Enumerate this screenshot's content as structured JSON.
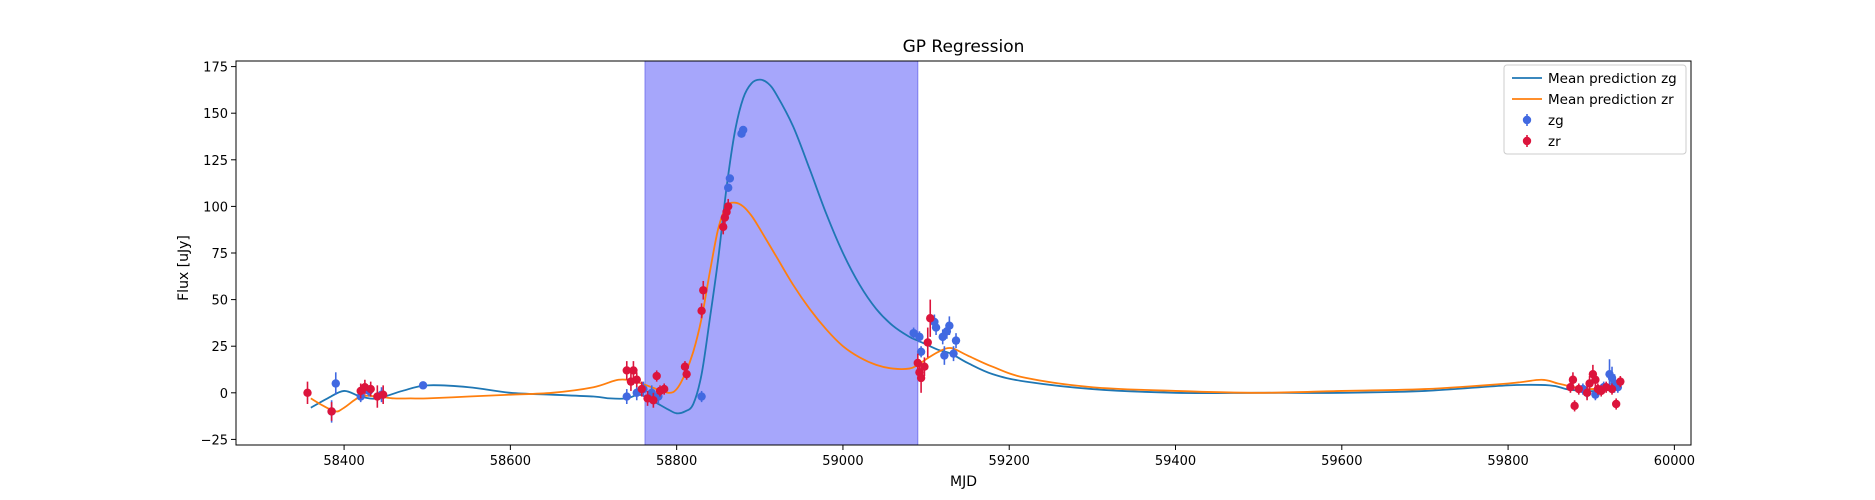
{
  "chart_data": {
    "type": "line",
    "title": "GP Regression",
    "xlabel": "MJD",
    "ylabel": "Flux [uJy]",
    "xlim": [
      58270,
      60020
    ],
    "ylim": [
      -28,
      178
    ],
    "xticks": [
      58400,
      58600,
      58800,
      59000,
      59200,
      59400,
      59600,
      59800,
      60000
    ],
    "yticks": [
      -25,
      0,
      25,
      50,
      75,
      100,
      125,
      150,
      175
    ],
    "grid": false,
    "legend_position": "top-right",
    "shaded_region": {
      "x_start": 58762,
      "x_end": 59090,
      "color": "#a6a6fb"
    },
    "series": [
      {
        "name": "Mean prediction zg",
        "kind": "line",
        "color": "#1f77b4",
        "x": [
          58360,
          58380,
          58400,
          58420,
          58440,
          58470,
          58500,
          58550,
          58600,
          58650,
          58700,
          58720,
          58740,
          58755,
          58770,
          58790,
          58800,
          58810,
          58820,
          58830,
          58840,
          58850,
          58860,
          58870,
          58880,
          58890,
          58900,
          58910,
          58920,
          58940,
          58960,
          58980,
          59000,
          59020,
          59040,
          59060,
          59080,
          59090,
          59100,
          59115,
          59130,
          59150,
          59180,
          59220,
          59300,
          59400,
          59500,
          59600,
          59700,
          59800,
          59850,
          59870,
          59890,
          59910,
          59930
        ],
        "y": [
          -8,
          -3,
          1,
          -2,
          -3,
          1,
          4,
          3,
          0,
          -1,
          -2,
          -3,
          -3,
          -1,
          -4,
          -9,
          -11,
          -10,
          -6,
          10,
          40,
          72,
          110,
          140,
          158,
          166,
          168,
          166,
          160,
          143,
          120,
          96,
          75,
          58,
          45,
          36,
          30,
          28,
          26,
          23,
          21,
          16,
          10,
          6,
          2,
          0,
          0,
          0,
          1,
          4,
          4,
          2,
          1,
          1,
          2
        ]
      },
      {
        "name": "Mean prediction zr",
        "kind": "line",
        "color": "#ff7f0e",
        "x": [
          58360,
          58375,
          58390,
          58400,
          58420,
          58440,
          58460,
          58480,
          58500,
          58550,
          58600,
          58650,
          58700,
          58730,
          58750,
          58770,
          58790,
          58800,
          58810,
          58820,
          58830,
          58840,
          58850,
          58860,
          58870,
          58880,
          58890,
          58900,
          58920,
          58940,
          58960,
          58980,
          59000,
          59020,
          59040,
          59060,
          59080,
          59090,
          59100,
          59115,
          59130,
          59150,
          59180,
          59220,
          59300,
          59400,
          59500,
          59600,
          59700,
          59800,
          59840,
          59860,
          59880,
          59900,
          59920,
          59935
        ],
        "y": [
          -3,
          -7,
          -10,
          -8,
          -2,
          -2,
          -3,
          -3,
          -3,
          -2,
          -1,
          0,
          3,
          7,
          6,
          3,
          0,
          2,
          10,
          22,
          40,
          65,
          88,
          100,
          102,
          100,
          95,
          88,
          73,
          58,
          45,
          34,
          25,
          19,
          15,
          13,
          13,
          15,
          18,
          22,
          24,
          20,
          14,
          8,
          3,
          1,
          0,
          1,
          2,
          5,
          7,
          5,
          3,
          2,
          3,
          4
        ]
      },
      {
        "name": "zg",
        "kind": "errorbar",
        "color": "#4169e1",
        "points": [
          {
            "x": 58385,
            "y": -10,
            "err": 6
          },
          {
            "x": 58390,
            "y": 5,
            "err": 6
          },
          {
            "x": 58420,
            "y": -2,
            "err": 3
          },
          {
            "x": 58430,
            "y": 1,
            "err": 3
          },
          {
            "x": 58445,
            "y": -1,
            "err": 4
          },
          {
            "x": 58495,
            "y": 4,
            "err": 1.5
          },
          {
            "x": 58740,
            "y": -2,
            "err": 4
          },
          {
            "x": 58752,
            "y": 0,
            "err": 4
          },
          {
            "x": 58760,
            "y": 2,
            "err": 4
          },
          {
            "x": 58770,
            "y": 0,
            "err": 4
          },
          {
            "x": 58778,
            "y": -2,
            "err": 4
          },
          {
            "x": 58830,
            "y": -2,
            "err": 3
          },
          {
            "x": 58862,
            "y": 110,
            "err": 2
          },
          {
            "x": 58864,
            "y": 115,
            "err": 2
          },
          {
            "x": 58878,
            "y": 139,
            "err": 2
          },
          {
            "x": 58880,
            "y": 141,
            "err": 2
          },
          {
            "x": 59085,
            "y": 32,
            "err": 3
          },
          {
            "x": 59092,
            "y": 30,
            "err": 3
          },
          {
            "x": 59094,
            "y": 22,
            "err": 3
          },
          {
            "x": 59110,
            "y": 38,
            "err": 4
          },
          {
            "x": 59112,
            "y": 35,
            "err": 4
          },
          {
            "x": 59120,
            "y": 30,
            "err": 4
          },
          {
            "x": 59122,
            "y": 20,
            "err": 5
          },
          {
            "x": 59125,
            "y": 33,
            "err": 4
          },
          {
            "x": 59128,
            "y": 36,
            "err": 5
          },
          {
            "x": 59133,
            "y": 21,
            "err": 4
          },
          {
            "x": 59136,
            "y": 28,
            "err": 4
          },
          {
            "x": 59890,
            "y": 2,
            "err": 3
          },
          {
            "x": 59895,
            "y": 0,
            "err": 3
          },
          {
            "x": 59905,
            "y": -1,
            "err": 3
          },
          {
            "x": 59915,
            "y": 3,
            "err": 3
          },
          {
            "x": 59922,
            "y": 10,
            "err": 8
          },
          {
            "x": 59925,
            "y": 8,
            "err": 6
          },
          {
            "x": 59928,
            "y": 5,
            "err": 5
          },
          {
            "x": 59932,
            "y": 3,
            "err": 3
          }
        ]
      },
      {
        "name": "zr",
        "kind": "errorbar",
        "color": "#dc143c",
        "points": [
          {
            "x": 58356,
            "y": 0,
            "err": 6
          },
          {
            "x": 58385,
            "y": -10,
            "err": 5
          },
          {
            "x": 58420,
            "y": 1,
            "err": 4
          },
          {
            "x": 58425,
            "y": 3,
            "err": 4
          },
          {
            "x": 58432,
            "y": 2,
            "err": 4
          },
          {
            "x": 58440,
            "y": -2,
            "err": 6
          },
          {
            "x": 58447,
            "y": -1,
            "err": 5
          },
          {
            "x": 58740,
            "y": 12,
            "err": 5
          },
          {
            "x": 58745,
            "y": 6,
            "err": 5
          },
          {
            "x": 58748,
            "y": 12,
            "err": 5
          },
          {
            "x": 58752,
            "y": 7,
            "err": 4
          },
          {
            "x": 58758,
            "y": 2,
            "err": 4
          },
          {
            "x": 58765,
            "y": -3,
            "err": 4
          },
          {
            "x": 58772,
            "y": -4,
            "err": 4
          },
          {
            "x": 58776,
            "y": 9,
            "err": 3
          },
          {
            "x": 58780,
            "y": 1,
            "err": 3
          },
          {
            "x": 58785,
            "y": 2,
            "err": 3
          },
          {
            "x": 58810,
            "y": 14,
            "err": 3
          },
          {
            "x": 58812,
            "y": 10,
            "err": 3
          },
          {
            "x": 58830,
            "y": 44,
            "err": 4
          },
          {
            "x": 58832,
            "y": 55,
            "err": 5
          },
          {
            "x": 58856,
            "y": 89,
            "err": 4
          },
          {
            "x": 58858,
            "y": 94,
            "err": 4
          },
          {
            "x": 58860,
            "y": 97,
            "err": 4
          },
          {
            "x": 58862,
            "y": 100,
            "err": 4
          },
          {
            "x": 59090,
            "y": 16,
            "err": 5
          },
          {
            "x": 59092,
            "y": 11,
            "err": 5
          },
          {
            "x": 59094,
            "y": 8,
            "err": 8
          },
          {
            "x": 59098,
            "y": 14,
            "err": 5
          },
          {
            "x": 59102,
            "y": 27,
            "err": 8
          },
          {
            "x": 59105,
            "y": 40,
            "err": 10
          },
          {
            "x": 59875,
            "y": 3,
            "err": 3
          },
          {
            "x": 59878,
            "y": 7,
            "err": 4
          },
          {
            "x": 59880,
            "y": -7,
            "err": 3
          },
          {
            "x": 59885,
            "y": 2,
            "err": 3
          },
          {
            "x": 59895,
            "y": 0,
            "err": 4
          },
          {
            "x": 59898,
            "y": 5,
            "err": 4
          },
          {
            "x": 59902,
            "y": 10,
            "err": 5
          },
          {
            "x": 59905,
            "y": 7,
            "err": 4
          },
          {
            "x": 59908,
            "y": 2,
            "err": 3
          },
          {
            "x": 59912,
            "y": 1,
            "err": 3
          },
          {
            "x": 59918,
            "y": 3,
            "err": 3
          },
          {
            "x": 59925,
            "y": 2,
            "err": 3
          },
          {
            "x": 59930,
            "y": -6,
            "err": 3
          },
          {
            "x": 59935,
            "y": 6,
            "err": 3
          }
        ]
      }
    ]
  }
}
